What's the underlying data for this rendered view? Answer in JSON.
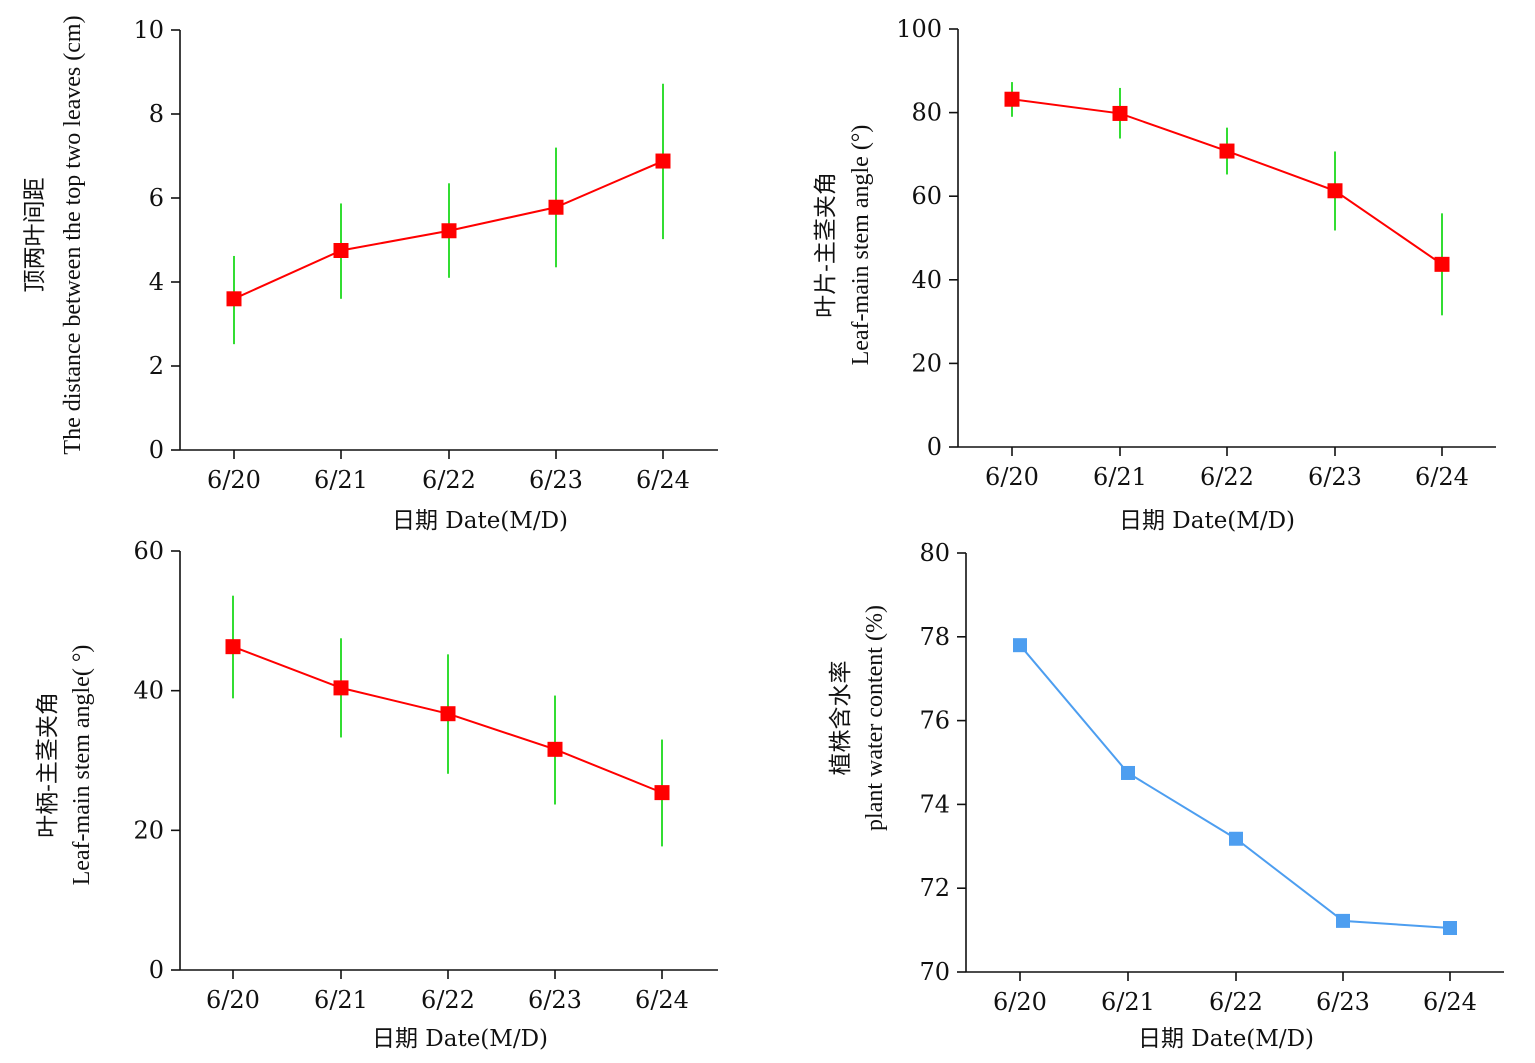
{
  "chart_data": [
    {
      "type": "line",
      "title": "",
      "categories": [
        "6/20",
        "6/21",
        "6/22",
        "6/23",
        "6/24"
      ],
      "xlabel": "日期 Date(M/D)",
      "ylabel_lines": [
        "顶两叶间距",
        "The distance between the top two leaves (cm)"
      ],
      "ylim": [
        0,
        10
      ],
      "yticks": [
        0,
        2,
        4,
        6,
        8,
        10
      ],
      "series": [
        {
          "values": [
            3.6,
            4.75,
            5.22,
            5.78,
            6.88
          ],
          "err_low": [
            2.52,
            3.6,
            4.1,
            4.35,
            5.02
          ],
          "err_high": [
            4.62,
            5.87,
            6.35,
            7.2,
            8.72
          ],
          "color": "#ff0000",
          "error_color": "#33dd33"
        }
      ],
      "grid": false
    },
    {
      "type": "line",
      "title": "",
      "categories": [
        "6/20",
        "6/21",
        "6/22",
        "6/23",
        "6/24"
      ],
      "xlabel": "日期 Date(M/D)",
      "ylabel_lines": [
        "叶片-主茎夹角",
        "Leaf-main stem angle (°)"
      ],
      "ylim": [
        0,
        100
      ],
      "yticks": [
        0,
        20,
        40,
        60,
        80,
        100
      ],
      "series": [
        {
          "values": [
            83.2,
            79.8,
            70.8,
            61.3,
            43.7
          ],
          "err_low": [
            79.0,
            73.8,
            65.2,
            51.8,
            31.5
          ],
          "err_high": [
            87.3,
            85.9,
            76.4,
            70.7,
            55.9
          ],
          "color": "#ff0000",
          "error_color": "#33dd33"
        }
      ],
      "grid": false
    },
    {
      "type": "line",
      "title": "",
      "categories": [
        "6/20",
        "6/21",
        "6/22",
        "6/23",
        "6/24"
      ],
      "xlabel": "日期 Date(M/D)",
      "ylabel_lines": [
        "叶柄-主茎夹角",
        "Leaf-main stem angle( °)"
      ],
      "ylim": [
        0,
        60
      ],
      "yticks": [
        0,
        20,
        40,
        60
      ],
      "series": [
        {
          "values": [
            46.3,
            40.4,
            36.7,
            31.6,
            25.4
          ],
          "err_low": [
            38.9,
            33.3,
            28.1,
            23.7,
            17.7
          ],
          "err_high": [
            53.6,
            47.5,
            45.2,
            39.3,
            33.0
          ],
          "color": "#ff0000",
          "error_color": "#33dd33"
        }
      ],
      "grid": false
    },
    {
      "type": "line",
      "title": "",
      "categories": [
        "6/20",
        "6/21",
        "6/22",
        "6/23",
        "6/24"
      ],
      "xlabel": "日期 Date(M/D)",
      "ylabel_lines": [
        "植株含水率",
        "plant water content (%)"
      ],
      "ylim": [
        70,
        80
      ],
      "yticks": [
        70,
        72,
        74,
        76,
        78,
        80
      ],
      "series": [
        {
          "values": [
            77.8,
            74.75,
            73.18,
            71.22,
            71.05
          ],
          "color": "#4d9ef0"
        }
      ],
      "grid": false
    }
  ]
}
